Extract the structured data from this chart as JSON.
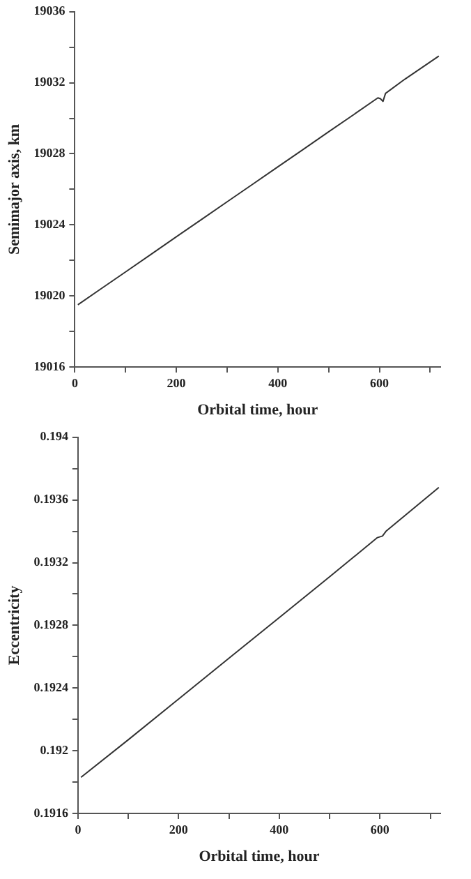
{
  "chart_data": [
    {
      "type": "line",
      "xlabel": "Orbital time, hour",
      "ylabel": "Semimajor axis, km",
      "marker": "none",
      "x": [
        6,
        50,
        100,
        150,
        200,
        250,
        300,
        350,
        400,
        450,
        500,
        550,
        597,
        602,
        607,
        612,
        650,
        717
      ],
      "series": [
        {
          "color": "#333333",
          "values": [
            19019.5,
            19020.37,
            19021.35,
            19022.34,
            19023.33,
            19024.31,
            19025.3,
            19026.28,
            19027.27,
            19028.25,
            19029.24,
            19030.22,
            19031.15,
            19031.1,
            19030.95,
            19031.4,
            19032.2,
            19033.5
          ]
        }
      ],
      "xlim": [
        0,
        720
      ],
      "xticks": [
        0,
        {
          "value": 100,
          "label": null
        },
        200,
        {
          "value": 300,
          "label": null
        },
        400,
        {
          "value": 500,
          "label": null
        },
        600,
        {
          "value": 700,
          "label": null
        }
      ],
      "ylim": [
        19016,
        19036
      ],
      "yticks": [
        19016,
        {
          "value": 19018,
          "label": null
        },
        19020,
        {
          "value": 19022,
          "label": null
        },
        19024,
        {
          "value": 19026,
          "label": null
        },
        19028,
        {
          "value": 19030,
          "label": null
        },
        19032,
        {
          "value": 19034,
          "label": null
        },
        19036
      ]
    },
    {
      "type": "line",
      "xlabel": "Orbital time, hour",
      "ylabel": "Eccentricity",
      "marker": "none",
      "x": [
        6,
        100,
        200,
        300,
        400,
        500,
        595,
        605,
        612,
        717
      ],
      "series": [
        {
          "color": "#333333",
          "values": [
            0.19183,
            0.19207,
            0.19233,
            0.19259,
            0.19285,
            0.19311,
            0.19336,
            0.19337,
            0.1934,
            0.19368
          ]
        }
      ],
      "xlim": [
        0,
        720
      ],
      "xticks": [
        0,
        {
          "value": 100,
          "label": null
        },
        200,
        {
          "value": 300,
          "label": null
        },
        400,
        {
          "value": 500,
          "label": null
        },
        600,
        {
          "value": 700,
          "label": null
        }
      ],
      "ylim": [
        0.1916,
        0.194
      ],
      "yticks": [
        0.1916,
        {
          "value": 0.1918,
          "label": null
        },
        0.192,
        {
          "value": 0.1922,
          "label": null
        },
        0.1924,
        {
          "value": 0.1926,
          "label": null
        },
        0.1928,
        {
          "value": 0.193,
          "label": null
        },
        0.1932,
        {
          "value": 0.1934,
          "label": null
        },
        0.1936,
        {
          "value": 0.1938,
          "label": null
        },
        0.194
      ]
    }
  ]
}
